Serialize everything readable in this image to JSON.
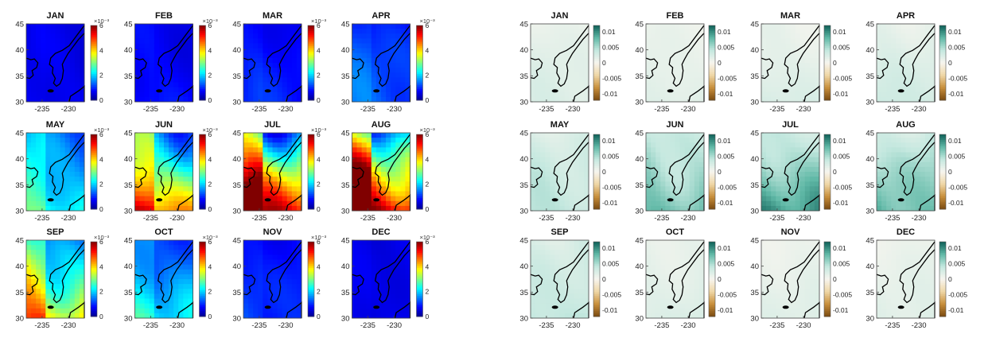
{
  "figure": {
    "months": [
      "JAN",
      "FEB",
      "MAR",
      "APR",
      "MAY",
      "JUN",
      "JUL",
      "AUG",
      "SEP",
      "OCT",
      "NOV",
      "DEC"
    ],
    "x_ticks": [
      "-235",
      "-230"
    ],
    "y_ticks": [
      "45",
      "40",
      "35",
      "30"
    ]
  },
  "chart_data": [
    {
      "type": "heatmap",
      "title": "",
      "panels": [
        "JAN",
        "FEB",
        "MAR",
        "APR",
        "MAY",
        "JUN",
        "JUL",
        "AUG",
        "SEP",
        "OCT",
        "NOV",
        "DEC"
      ],
      "x_range": [
        -238,
        -227
      ],
      "y_range": [
        30,
        45
      ],
      "colorbar": {
        "range": [
          0,
          6
        ],
        "ticks": [
          "6",
          "4",
          "2",
          "0"
        ],
        "exponent": "×10⁻³",
        "colormap": "jet",
        "colors": [
          "#00008f",
          "#0000ff",
          "#0080ff",
          "#00ffff",
          "#80ff80",
          "#ffff00",
          "#ff8000",
          "#ff0000",
          "#800000"
        ]
      },
      "approx_mean_level_e3": {
        "JAN": 0.6,
        "FEB": 0.7,
        "MAR": 0.8,
        "APR": 1.1,
        "MAY": 1.9,
        "JUN": 3.0,
        "JUL": 3.7,
        "AUG": 3.9,
        "SEP": 2.8,
        "OCT": 1.7,
        "NOV": 0.9,
        "DEC": 0.6
      }
    },
    {
      "type": "heatmap",
      "title": "",
      "panels": [
        "JAN",
        "FEB",
        "MAR",
        "APR",
        "MAY",
        "JUN",
        "JUL",
        "AUG",
        "SEP",
        "OCT",
        "NOV",
        "DEC"
      ],
      "x_range": [
        -238,
        -227
      ],
      "y_range": [
        30,
        45
      ],
      "colorbar": {
        "range": [
          -0.012,
          0.012
        ],
        "ticks": [
          "0.01",
          "0.005",
          "0",
          "-0.005",
          "-0.01"
        ],
        "colormap": "brown-white-teal",
        "colors": [
          "#7a4a10",
          "#c88f3c",
          "#efd7a6",
          "#f7f5ef",
          "#c4e8df",
          "#5fb8a6",
          "#0e5f57"
        ]
      },
      "approx_mean_level": {
        "JAN": 0.0015,
        "FEB": 0.0012,
        "MAR": 0.0015,
        "APR": 0.002,
        "MAY": 0.003,
        "JUN": 0.005,
        "JUL": 0.006,
        "AUG": 0.005,
        "SEP": 0.003,
        "OCT": 0.0015,
        "NOV": 0.0012,
        "DEC": 0.0012
      }
    }
  ]
}
